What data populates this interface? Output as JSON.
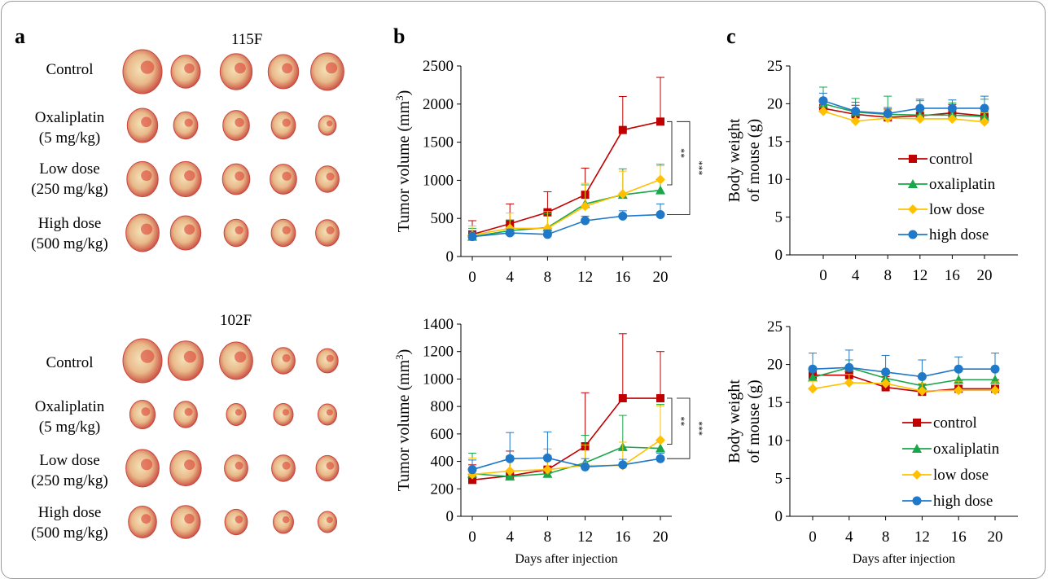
{
  "panels": {
    "a": "a",
    "b": "b",
    "c": "c"
  },
  "photos": [
    {
      "title": "115F",
      "rows": [
        {
          "l1": "Control",
          "l2": "",
          "sizes": [
            1.0,
            0.75,
            0.82,
            0.78,
            0.85
          ]
        },
        {
          "l1": "Oxaliplatin",
          "l2": "(5 mg/kg)",
          "sizes": [
            0.78,
            0.62,
            0.68,
            0.62,
            0.45
          ]
        },
        {
          "l1": "Low dose",
          "l2": "(250 mg/kg)",
          "sizes": [
            0.8,
            0.8,
            0.7,
            0.68,
            0.6
          ]
        },
        {
          "l1": "High dose",
          "l2": "(500 mg/kg)",
          "sizes": [
            0.85,
            0.78,
            0.62,
            0.62,
            0.6
          ]
        }
      ]
    },
    {
      "title": "102F",
      "rows": [
        {
          "l1": "Control",
          "l2": "",
          "sizes": [
            1.0,
            0.9,
            0.85,
            0.6,
            0.55
          ]
        },
        {
          "l1": "Oxaliplatin",
          "l2": "(5 mg/kg)",
          "sizes": [
            0.65,
            0.6,
            0.5,
            0.5,
            0.48
          ]
        },
        {
          "l1": "Low dose",
          "l2": "(250 mg/kg)",
          "sizes": [
            0.85,
            0.8,
            0.6,
            0.6,
            0.58
          ]
        },
        {
          "l1": "High dose",
          "l2": "(500 mg/kg)",
          "sizes": [
            0.72,
            0.75,
            0.58,
            0.52,
            0.48
          ]
        }
      ]
    }
  ],
  "colors": {
    "control": "#c00000",
    "oxaliplatin": "#1aa64a",
    "low dose": "#ffc000",
    "high dose": "#1f78c8"
  },
  "chart_data": [
    {
      "type": "line",
      "panel": "b",
      "ylabel": "Tumor volume (mm",
      "ylabel_sup": "3",
      "ylabel_end": ")",
      "xlabel": "",
      "ylim": [
        0,
        2500
      ],
      "yticks": [
        0,
        500,
        1000,
        1500,
        2000,
        2500
      ],
      "x": [
        0,
        4,
        8,
        12,
        16,
        20
      ],
      "xticks": [
        "0",
        "4",
        "8",
        "12",
        "16",
        "20"
      ],
      "series": [
        {
          "name": "control",
          "marker": "square",
          "values": [
            290,
            430,
            580,
            810,
            1660,
            1770
          ],
          "err": [
            180,
            260,
            270,
            350,
            440,
            580
          ]
        },
        {
          "name": "oxaliplatin",
          "marker": "triangle",
          "values": [
            260,
            340,
            380,
            690,
            810,
            870
          ],
          "err": [
            110,
            140,
            180,
            250,
            340,
            340
          ]
        },
        {
          "name": "low dose",
          "marker": "diamond",
          "values": [
            280,
            370,
            370,
            660,
            820,
            1010
          ],
          "err": [
            120,
            200,
            220,
            300,
            300,
            180
          ]
        },
        {
          "name": "high dose",
          "marker": "circle",
          "values": [
            260,
            310,
            290,
            470,
            530,
            550
          ],
          "err": [
            60,
            50,
            60,
            60,
            70,
            140
          ]
        }
      ],
      "sig": [
        {
          "label": "**"
        },
        {
          "label": "***"
        }
      ]
    },
    {
      "type": "line",
      "panel": "c",
      "ylabel": "Body weight",
      "ylabel2": "of mouse (g)",
      "xlabel": "",
      "ylim": [
        0,
        25
      ],
      "yticks": [
        0,
        5,
        10,
        15,
        20,
        25
      ],
      "x": [
        0,
        4,
        8,
        12,
        16,
        20
      ],
      "xticks": [
        "0",
        "4",
        "8",
        "12",
        "16",
        "20"
      ],
      "legend": "right",
      "series": [
        {
          "name": "control",
          "marker": "square",
          "values": [
            19.4,
            18.6,
            18.2,
            18.4,
            18.8,
            18.4
          ],
          "err": [
            1.2,
            1.2,
            1.1,
            1.2,
            1.1,
            1.1
          ]
        },
        {
          "name": "oxaliplatin",
          "marker": "triangle",
          "values": [
            20.0,
            18.9,
            18.6,
            18.5,
            18.5,
            18.3
          ],
          "err": [
            2.2,
            1.8,
            2.4,
            1.9,
            1.6,
            2.3
          ]
        },
        {
          "name": "low dose",
          "marker": "diamond",
          "values": [
            19.0,
            17.7,
            18.1,
            18.0,
            18.0,
            17.6
          ],
          "err": [
            1.0,
            1.5,
            1.1,
            1.0,
            1.1,
            1.2
          ]
        },
        {
          "name": "high dose",
          "marker": "circle",
          "values": [
            20.4,
            19.0,
            18.7,
            19.4,
            19.4,
            19.4
          ],
          "err": [
            1.0,
            1.2,
            0.8,
            1.2,
            1.1,
            1.6
          ]
        }
      ]
    },
    {
      "type": "line",
      "panel": "b",
      "ylabel": "Tumor volume (mm",
      "ylabel_sup": "3",
      "ylabel_end": ")",
      "xlabel": "Days after  injection",
      "ylim": [
        0,
        1400
      ],
      "yticks": [
        0,
        200,
        400,
        600,
        800,
        1000,
        1200,
        1400
      ],
      "x": [
        0,
        4,
        8,
        12,
        16,
        20
      ],
      "xticks": [
        "0",
        "4",
        "8",
        "12",
        "16",
        "20"
      ],
      "series": [
        {
          "name": "control",
          "marker": "square",
          "values": [
            265,
            295,
            340,
            510,
            860,
            860
          ],
          "err": [
            110,
            180,
            150,
            390,
            470,
            340
          ]
        },
        {
          "name": "oxaliplatin",
          "marker": "triangle",
          "values": [
            310,
            290,
            310,
            390,
            505,
            495
          ],
          "err": [
            150,
            120,
            130,
            200,
            230,
            320
          ]
        },
        {
          "name": "low dose",
          "marker": "diamond",
          "values": [
            305,
            330,
            340,
            370,
            370,
            555
          ],
          "err": [
            120,
            110,
            150,
            150,
            170,
            250
          ]
        },
        {
          "name": "high dose",
          "marker": "circle",
          "values": [
            340,
            420,
            425,
            360,
            375,
            420
          ],
          "err": [
            70,
            190,
            190,
            60,
            40,
            40
          ]
        }
      ],
      "sig": [
        {
          "label": "**"
        },
        {
          "label": "***"
        }
      ]
    },
    {
      "type": "line",
      "panel": "c",
      "ylabel": "Body weight",
      "ylabel2": "of mouse (g)",
      "xlabel": "Days after injection",
      "ylim": [
        0,
        25
      ],
      "yticks": [
        0,
        5,
        10,
        15,
        20,
        25
      ],
      "x": [
        0,
        4,
        8,
        12,
        16,
        20
      ],
      "xticks": [
        "0",
        "4",
        "8",
        "12",
        "16",
        "20"
      ],
      "legend": "right",
      "series": [
        {
          "name": "control",
          "marker": "square",
          "values": [
            18.6,
            18.6,
            17.0,
            16.4,
            16.8,
            16.8
          ],
          "err": [
            1.0,
            1.1,
            1.4,
            1.0,
            1.1,
            1.2
          ]
        },
        {
          "name": "oxaliplatin",
          "marker": "triangle",
          "values": [
            18.3,
            19.6,
            18.2,
            17.2,
            18.0,
            18.0
          ],
          "err": [
            1.2,
            1.0,
            1.0,
            1.0,
            1.1,
            1.2
          ]
        },
        {
          "name": "low dose",
          "marker": "diamond",
          "values": [
            16.8,
            17.6,
            17.5,
            16.5,
            16.6,
            16.6
          ],
          "err": [
            1.0,
            1.1,
            1.1,
            1.0,
            1.2,
            1.1
          ]
        },
        {
          "name": "high dose",
          "marker": "circle",
          "values": [
            19.4,
            19.6,
            19.0,
            18.4,
            19.4,
            19.4
          ],
          "err": [
            2.1,
            2.3,
            2.2,
            2.2,
            1.6,
            2.1
          ]
        }
      ]
    }
  ]
}
